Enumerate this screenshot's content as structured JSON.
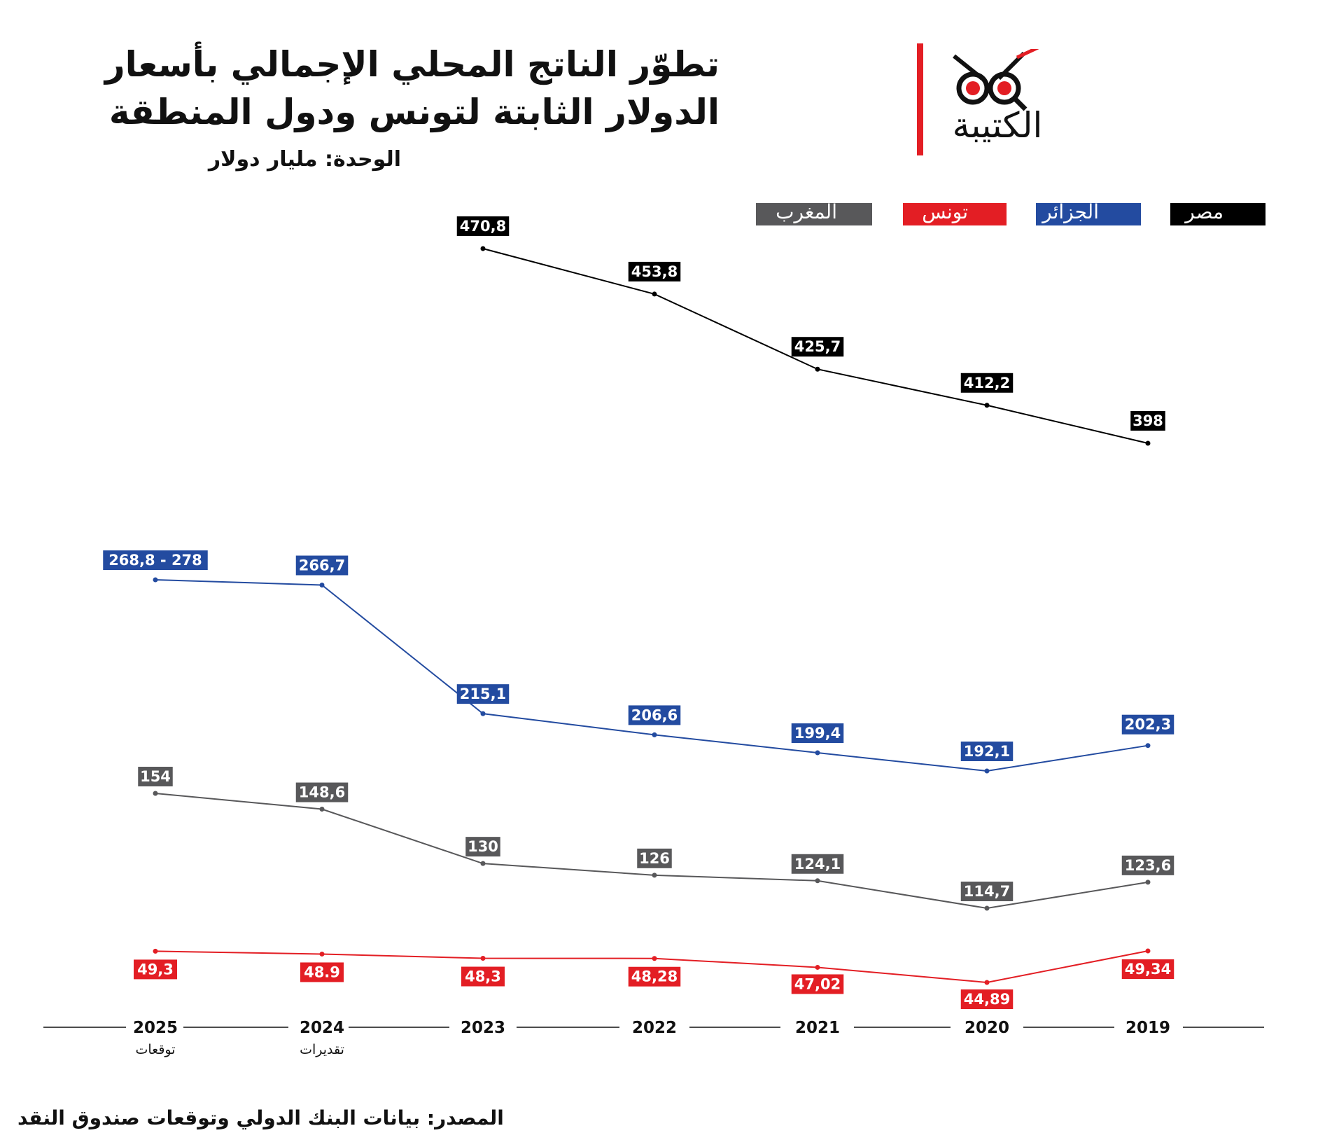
{
  "header": {
    "title_line1": "تطوّر الناتج المحلي الإجمالي بأسعار",
    "title_line2": "الدولار الثابتة لتونس ودول المنطقة",
    "unit": "الوحدة: مليار دولار",
    "logo_text": "الكتيبة"
  },
  "footer": {
    "source": "المصدر: بيانات البنك الدولي وتوقعات صندوق النقد"
  },
  "legend": {
    "morocco": "المغرب",
    "tunisia": "تونس",
    "algeria": "الجزائر",
    "egypt": "مصر"
  },
  "colors": {
    "egypt": "#000000",
    "algeria": "#234ba0",
    "morocco": "#58585a",
    "tunisia": "#e31e24",
    "accent": "#e31e24"
  },
  "chart_data": {
    "type": "line",
    "title": "تطوّر الناتج المحلي الإجمالي بأسعار الدولار الثابتة لتونس ودول المنطقة",
    "ylabel": "الوحدة: مليار دولار",
    "x": [
      "2019",
      "2020",
      "2021",
      "2022",
      "2023",
      "2024",
      "2025"
    ],
    "x_sublabels": [
      "",
      "",
      "",
      "",
      "",
      "تقديرات",
      "توقعات"
    ],
    "x_direction": "right-to-left",
    "legend_position": "top",
    "grid": false,
    "series": [
      {
        "name": "مصر",
        "key": "egypt",
        "values": [
          398,
          412.2,
          425.7,
          453.8,
          470.8,
          null,
          null
        ],
        "labels": [
          "398",
          "412,2",
          "425,7",
          "453,8",
          "470,8",
          null,
          null
        ]
      },
      {
        "name": "الجزائر",
        "key": "algeria",
        "values": [
          202.3,
          192.1,
          199.4,
          206.6,
          215.1,
          266.7,
          268.8
        ],
        "labels": [
          "202,3",
          "192,1",
          "199,4",
          "206,6",
          "215,1",
          "266,7",
          "268,8 - 278"
        ]
      },
      {
        "name": "المغرب",
        "key": "morocco",
        "values": [
          123.6,
          114.7,
          124.1,
          126,
          130,
          148.6,
          154
        ],
        "labels": [
          "123,6",
          "114,7",
          "124,1",
          "126",
          "130",
          "148,6",
          "154"
        ]
      },
      {
        "name": "تونس",
        "key": "tunisia",
        "values": [
          49.34,
          44.89,
          47.02,
          48.28,
          48.3,
          48.9,
          49.3
        ],
        "labels": [
          "49,34",
          "44,89",
          "47,02",
          "48,28",
          "48,3",
          "48.9",
          "49,3"
        ]
      }
    ]
  }
}
